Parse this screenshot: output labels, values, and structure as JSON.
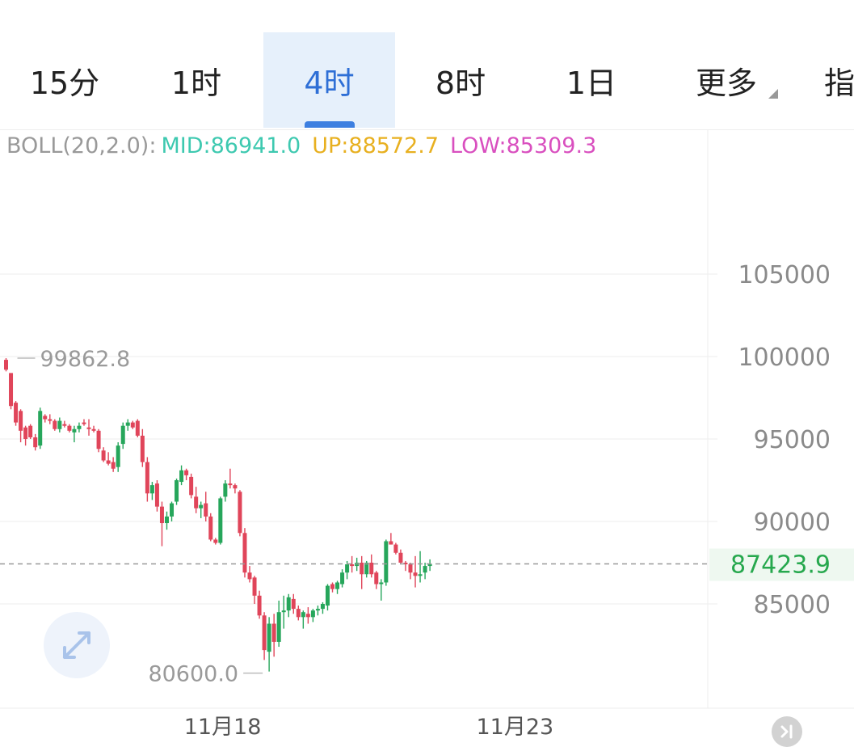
{
  "tabs": [
    {
      "label": "15分",
      "active": false
    },
    {
      "label": "1时",
      "active": false
    },
    {
      "label": "4时",
      "active": true
    },
    {
      "label": "8时",
      "active": false
    },
    {
      "label": "1日",
      "active": false
    },
    {
      "label": "更多",
      "active": false,
      "has_dropdown": true
    },
    {
      "label": "指",
      "active": false
    }
  ],
  "legend": {
    "boll": "BOLL(20,2.0):",
    "mid": "MID:86941.0",
    "up": "UP:88572.7",
    "low": "LOW:85309.3"
  },
  "colors": {
    "up_candle": "#26a65b",
    "down_candle": "#e0455a",
    "mid_line": "#3ec9b0",
    "upper_band": "#e8b020",
    "lower_band": "#d94fbf",
    "current_price_text": "#27a84e",
    "accent": "#2e6fd6"
  },
  "controls": {
    "expand": "expand-icon",
    "scroll_latest": "skip-to-latest-icon"
  },
  "chart_data": {
    "type": "candlestick",
    "y_ticks": [
      105000,
      100000,
      95000,
      90000,
      85000
    ],
    "x_ticks": [
      {
        "label": "11月18",
        "index": 35
      },
      {
        "label": "11月23",
        "index": 95
      }
    ],
    "current_price": "87423.9",
    "high_label": "99862.8",
    "low_label": "80600.0",
    "ohlc": [
      [
        99800,
        99900,
        99100,
        99200
      ],
      [
        99000,
        99000,
        96800,
        97000
      ],
      [
        97200,
        97300,
        95800,
        96000
      ],
      [
        96700,
        96800,
        94800,
        95500
      ],
      [
        95700,
        95800,
        94600,
        95000
      ],
      [
        95800,
        95900,
        95000,
        95100
      ],
      [
        95100,
        95300,
        94300,
        94500
      ],
      [
        94600,
        96900,
        94400,
        96700
      ],
      [
        96400,
        96500,
        96000,
        96200
      ],
      [
        96200,
        96500,
        95900,
        96100
      ],
      [
        96100,
        96200,
        95500,
        95600
      ],
      [
        95600,
        96300,
        95400,
        96100
      ],
      [
        95900,
        96100,
        95700,
        95800
      ],
      [
        95800,
        95900,
        95400,
        95500
      ],
      [
        95400,
        95800,
        94800,
        95600
      ],
      [
        95600,
        96000,
        95400,
        95800
      ],
      [
        96000,
        96200,
        95800,
        95900
      ],
      [
        95700,
        96200,
        95200,
        95600
      ],
      [
        95600,
        95800,
        95400,
        95500
      ],
      [
        95500,
        95600,
        94200,
        94400
      ],
      [
        94300,
        94500,
        93600,
        93700
      ],
      [
        93700,
        94200,
        93400,
        93500
      ],
      [
        93600,
        93900,
        93000,
        93200
      ],
      [
        93300,
        94800,
        93000,
        94600
      ],
      [
        94700,
        96000,
        94400,
        95800
      ],
      [
        95800,
        96200,
        95500,
        96000
      ],
      [
        96000,
        96100,
        95600,
        95700
      ],
      [
        96100,
        96200,
        95100,
        95200
      ],
      [
        95200,
        95600,
        93300,
        93600
      ],
      [
        93600,
        93900,
        91200,
        91700
      ],
      [
        91700,
        92400,
        91300,
        92200
      ],
      [
        92300,
        92500,
        90600,
        90900
      ],
      [
        90900,
        91200,
        88500,
        89900
      ],
      [
        89900,
        90600,
        89500,
        90300
      ],
      [
        90300,
        91200,
        90000,
        91100
      ],
      [
        91200,
        92600,
        91000,
        92500
      ],
      [
        92400,
        93400,
        92200,
        93100
      ],
      [
        93100,
        93200,
        92500,
        92800
      ],
      [
        92700,
        92900,
        91400,
        91600
      ],
      [
        91500,
        92100,
        90500,
        90800
      ],
      [
        90800,
        91200,
        90200,
        91000
      ],
      [
        91100,
        91800,
        90000,
        90300
      ],
      [
        90300,
        90500,
        88800,
        88900
      ],
      [
        88900,
        89000,
        88600,
        88700
      ],
      [
        88700,
        91500,
        88600,
        91400
      ],
      [
        91500,
        92500,
        91200,
        92300
      ],
      [
        92300,
        93200,
        92000,
        92200
      ],
      [
        92200,
        92300,
        91700,
        92000
      ],
      [
        91800,
        91900,
        89100,
        89300
      ],
      [
        89300,
        89600,
        86600,
        86900
      ],
      [
        86900,
        87300,
        86300,
        86500
      ],
      [
        86600,
        86700,
        85000,
        85500
      ],
      [
        85500,
        85800,
        84100,
        84300
      ],
      [
        84300,
        84500,
        81600,
        82200
      ],
      [
        82100,
        84200,
        80900,
        83800
      ],
      [
        83800,
        84400,
        81800,
        82700
      ],
      [
        82700,
        85200,
        82400,
        84500
      ],
      [
        84500,
        85500,
        83500,
        84600
      ],
      [
        84600,
        85600,
        84200,
        85400
      ],
      [
        85300,
        85600,
        84400,
        84700
      ],
      [
        84700,
        84900,
        84000,
        84200
      ],
      [
        84200,
        84600,
        83500,
        84500
      ],
      [
        84400,
        84800,
        83800,
        84200
      ],
      [
        84200,
        84700,
        83900,
        84600
      ],
      [
        84600,
        84900,
        84300,
        84700
      ],
      [
        84700,
        85100,
        84400,
        85000
      ],
      [
        84900,
        86200,
        84600,
        86100
      ],
      [
        86200,
        86300,
        85700,
        85900
      ],
      [
        85900,
        86400,
        85600,
        86300
      ],
      [
        86200,
        87100,
        86000,
        86900
      ],
      [
        86900,
        87600,
        86500,
        87400
      ],
      [
        87400,
        87900,
        86900,
        87300
      ],
      [
        87300,
        87800,
        87000,
        87500
      ],
      [
        87500,
        87900,
        85900,
        86800
      ],
      [
        86800,
        87600,
        86600,
        87500
      ],
      [
        87500,
        88000,
        86600,
        86800
      ],
      [
        86900,
        87000,
        85900,
        86200
      ],
      [
        86200,
        86500,
        85200,
        86300
      ],
      [
        86300,
        88900,
        86100,
        88800
      ],
      [
        88800,
        89300,
        88600,
        88600
      ],
      [
        88600,
        88700,
        88000,
        88100
      ],
      [
        88100,
        88300,
        87400,
        87500
      ],
      [
        87500,
        87600,
        87000,
        87400
      ],
      [
        87400,
        87500,
        86500,
        86900
      ],
      [
        86900,
        87900,
        86000,
        86700
      ],
      [
        86700,
        88200,
        86300,
        86800
      ],
      [
        86900,
        87500,
        86500,
        87300
      ],
      [
        87300,
        87700,
        87000,
        87424
      ]
    ],
    "upper_band": [],
    "mid_band": [],
    "lower_band": []
  }
}
